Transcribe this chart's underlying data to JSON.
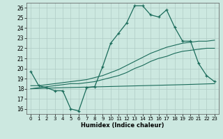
{
  "xlabel": "Humidex (Indice chaleur)",
  "bg_color": "#cce8e0",
  "line_color": "#1a6b5a",
  "grid_color": "#b0ccc5",
  "xlim": [
    -0.5,
    23.5
  ],
  "ylim": [
    15.5,
    26.5
  ],
  "xticks": [
    0,
    1,
    2,
    3,
    4,
    5,
    6,
    7,
    8,
    9,
    10,
    11,
    12,
    13,
    14,
    15,
    16,
    17,
    18,
    19,
    20,
    21,
    22,
    23
  ],
  "yticks": [
    16,
    17,
    18,
    19,
    20,
    21,
    22,
    23,
    24,
    25,
    26
  ],
  "line1_x": [
    0,
    1,
    2,
    3,
    4,
    5,
    6,
    7,
    8,
    9,
    10,
    11,
    12,
    13,
    14,
    15,
    16,
    17,
    18,
    19,
    20,
    21,
    22,
    23
  ],
  "line1_y": [
    19.7,
    18.3,
    18.1,
    17.8,
    17.8,
    16.0,
    15.8,
    18.1,
    18.2,
    20.2,
    22.5,
    23.5,
    24.5,
    26.2,
    26.2,
    25.3,
    25.1,
    25.8,
    24.1,
    22.7,
    22.7,
    20.5,
    19.3,
    18.7
  ],
  "line2_x": [
    0,
    1,
    2,
    3,
    4,
    5,
    6,
    7,
    8,
    9,
    10,
    11,
    12,
    13,
    14,
    15,
    16,
    17,
    18,
    19,
    20,
    21,
    22,
    23
  ],
  "line2_y": [
    18.3,
    18.3,
    18.4,
    18.5,
    18.6,
    18.7,
    18.8,
    18.9,
    19.1,
    19.3,
    19.6,
    19.9,
    20.3,
    20.7,
    21.1,
    21.5,
    21.8,
    22.1,
    22.3,
    22.5,
    22.6,
    22.7,
    22.7,
    22.8
  ],
  "line3_x": [
    0,
    1,
    2,
    3,
    4,
    5,
    6,
    7,
    8,
    9,
    10,
    11,
    12,
    13,
    14,
    15,
    16,
    17,
    18,
    19,
    20,
    21,
    22,
    23
  ],
  "line3_y": [
    18.0,
    18.1,
    18.2,
    18.3,
    18.4,
    18.5,
    18.5,
    18.6,
    18.7,
    18.9,
    19.1,
    19.3,
    19.6,
    20.0,
    20.3,
    20.7,
    21.0,
    21.2,
    21.5,
    21.7,
    21.8,
    21.9,
    22.0,
    22.0
  ],
  "line4_x": [
    0,
    4,
    9,
    14,
    19,
    23
  ],
  "line4_y": [
    18.0,
    18.1,
    18.2,
    18.3,
    18.4,
    18.5
  ]
}
